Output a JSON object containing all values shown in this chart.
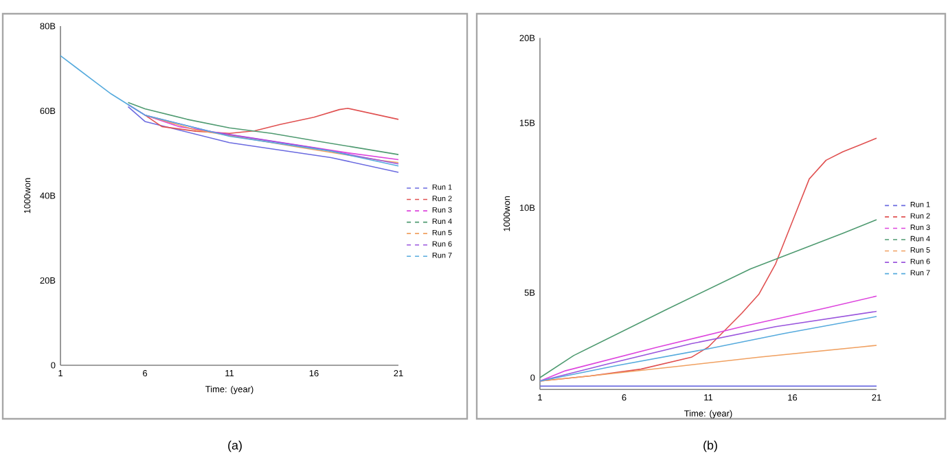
{
  "chart_data": [
    {
      "type": "line",
      "xlabel": "Time: (year)",
      "ylabel": "1000won",
      "xlim": [
        1,
        21
      ],
      "ylim": [
        0,
        80
      ],
      "xticks": [
        1,
        6,
        11,
        16,
        21
      ],
      "yticks": [
        {
          "value": 0,
          "label": "0"
        },
        {
          "value": 20,
          "label": "20B"
        },
        {
          "value": 40,
          "label": "40B"
        },
        {
          "value": 60,
          "label": "60B"
        },
        {
          "value": 80,
          "label": "80B"
        }
      ],
      "legend": "right",
      "annotations": [
        "(a)"
      ],
      "series": [
        {
          "name": "Run 1",
          "color": "#6a6ae0",
          "x": [
            5,
            6,
            11,
            17,
            21
          ],
          "values": [
            61,
            57.5,
            52.5,
            49,
            45.5
          ]
        },
        {
          "name": "Run 2",
          "color": "#e05050",
          "x": [
            6,
            7,
            9,
            11,
            12.5,
            14,
            16,
            17.5,
            18,
            21
          ],
          "values": [
            59,
            56.3,
            55.2,
            54.7,
            55.3,
            56.8,
            58.5,
            60.3,
            60.6,
            58
          ]
        },
        {
          "name": "Run 3",
          "color": "#dd44dd",
          "x": [
            5,
            6,
            8,
            12.5,
            18,
            21
          ],
          "values": [
            61.5,
            59,
            56.3,
            53.5,
            50.1,
            48.5
          ]
        },
        {
          "name": "Run 4",
          "color": "#4e9a70",
          "x": [
            5,
            6,
            8.5,
            11,
            13.5,
            16,
            21
          ],
          "values": [
            62,
            60.5,
            58,
            56,
            54.7,
            53,
            49.7
          ]
        },
        {
          "name": "Run 5",
          "color": "#f0a060",
          "x": [
            6,
            9,
            15,
            20,
            21
          ],
          "values": [
            59,
            55.5,
            51.5,
            48.3,
            47.8
          ]
        },
        {
          "name": "Run 6",
          "color": "#9a55dd",
          "x": [
            5,
            6,
            10,
            16,
            21
          ],
          "values": [
            61.5,
            59,
            55,
            51.3,
            47.5
          ]
        },
        {
          "name": "Run 7",
          "color": "#55aadd",
          "x": [
            1,
            2,
            3,
            4,
            5,
            6,
            11,
            17,
            21
          ],
          "values": [
            73,
            70,
            67,
            64,
            61.5,
            59,
            54,
            50.5,
            47
          ]
        }
      ]
    },
    {
      "type": "line",
      "xlabel": "Time: (year)",
      "ylabel": "1000won",
      "xlim": [
        1,
        21
      ],
      "ylim": [
        -0.7,
        20
      ],
      "xticks": [
        1,
        6,
        11,
        16,
        21
      ],
      "yticks": [
        {
          "value": 0,
          "label": "0"
        },
        {
          "value": 5,
          "label": "5B"
        },
        {
          "value": 10,
          "label": "10B"
        },
        {
          "value": 15,
          "label": "15B"
        },
        {
          "value": 20,
          "label": "20B"
        }
      ],
      "legend": "right",
      "annotations": [
        "(b)"
      ],
      "series": [
        {
          "name": "Run 1",
          "color": "#6a6ae0",
          "x": [
            1,
            6,
            11,
            16,
            21
          ],
          "values": [
            -0.5,
            -0.5,
            -0.5,
            -0.5,
            -0.5
          ]
        },
        {
          "name": "Run 2",
          "color": "#e05050",
          "x": [
            1,
            2,
            4,
            7,
            10,
            11,
            12,
            13,
            14,
            15,
            16,
            17,
            18,
            19,
            20,
            21
          ],
          "values": [
            -0.2,
            -0.1,
            0.1,
            0.5,
            1.2,
            1.8,
            2.8,
            3.8,
            4.9,
            6.7,
            9.2,
            11.7,
            12.8,
            13.3,
            13.7,
            14.1
          ]
        },
        {
          "name": "Run 3",
          "color": "#dd44dd",
          "x": [
            1,
            2.5,
            8,
            13,
            18,
            21
          ],
          "values": [
            -0.2,
            0.4,
            1.8,
            3,
            4.1,
            4.8
          ]
        },
        {
          "name": "Run 4",
          "color": "#4e9a70",
          "x": [
            1,
            3,
            8.5,
            13.5,
            19,
            21
          ],
          "values": [
            0,
            1.3,
            4,
            6.4,
            8.5,
            9.3
          ]
        },
        {
          "name": "Run 5",
          "color": "#f0a060",
          "x": [
            1,
            4,
            9.5,
            14,
            20,
            21
          ],
          "values": [
            -0.2,
            0.1,
            0.7,
            1.2,
            1.8,
            1.9
          ]
        },
        {
          "name": "Run 6",
          "color": "#9a55dd",
          "x": [
            1,
            5,
            10,
            15,
            21
          ],
          "values": [
            -0.2,
            0.8,
            2,
            3,
            3.9
          ]
        },
        {
          "name": "Run 7",
          "color": "#55aadd",
          "x": [
            1,
            5.5,
            11,
            15.5,
            21
          ],
          "values": [
            -0.2,
            0.7,
            1.7,
            2.6,
            3.6
          ]
        }
      ]
    }
  ]
}
